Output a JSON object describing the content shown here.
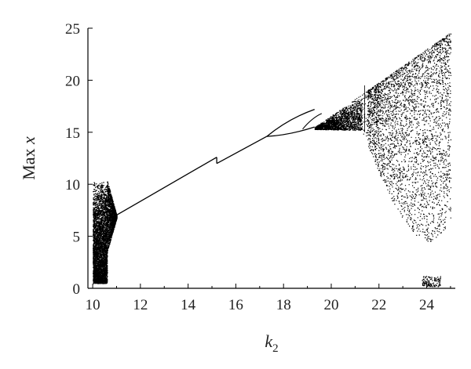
{
  "chart_data": {
    "type": "scatter",
    "title": "",
    "xlabel": "k",
    "xlabel_subscript": "2",
    "ylabel_prefix": "Max ",
    "ylabel_var": "x",
    "xlim": [
      9.8,
      25.2
    ],
    "ylim": [
      0,
      25
    ],
    "xticks": [
      "10",
      "12",
      "14",
      "16",
      "18",
      "20",
      "22",
      "24"
    ],
    "yticks": [
      "0",
      "5",
      "10",
      "15",
      "20",
      "25"
    ],
    "grid": false,
    "marker_color": "#000000",
    "series": [
      {
        "region": "chaotic-band-left",
        "x_range": [
          10.0,
          10.6
        ],
        "y_range": [
          0.5,
          10.4
        ]
      },
      {
        "region": "narrowing-band",
        "x_range": [
          10.6,
          11.0
        ],
        "y_range": [
          3.5,
          10.4
        ]
      },
      {
        "region": "periodic-branch-1",
        "x_start": 10.9,
        "y_start": 6.9,
        "x_end": 15.2,
        "y_end": 12.6
      },
      {
        "region": "periodic-branch-2",
        "x_start": 15.2,
        "y_start": 12.0,
        "x_end": 17.3,
        "y_end": 14.6
      },
      {
        "region": "period-doubling-upper",
        "x_start": 17.3,
        "y_start": 14.6,
        "x_end": 19.3,
        "y_end": 17.2
      },
      {
        "region": "period-doubling-lower",
        "x_start": 17.3,
        "y_start": 14.6,
        "x_end": 19.3,
        "y_end": 15.5
      },
      {
        "region": "chaotic-band-right",
        "x_range": [
          19.3,
          25.0
        ],
        "y_range": [
          4.5,
          24.6
        ]
      },
      {
        "region": "periodic-window",
        "x_range": [
          21.3,
          21.5
        ],
        "y_range": [
          15.0,
          19.5
        ]
      },
      {
        "region": "low-cluster",
        "x_range": [
          23.8,
          24.6
        ],
        "y_range": [
          0.2,
          1.2
        ]
      }
    ]
  }
}
